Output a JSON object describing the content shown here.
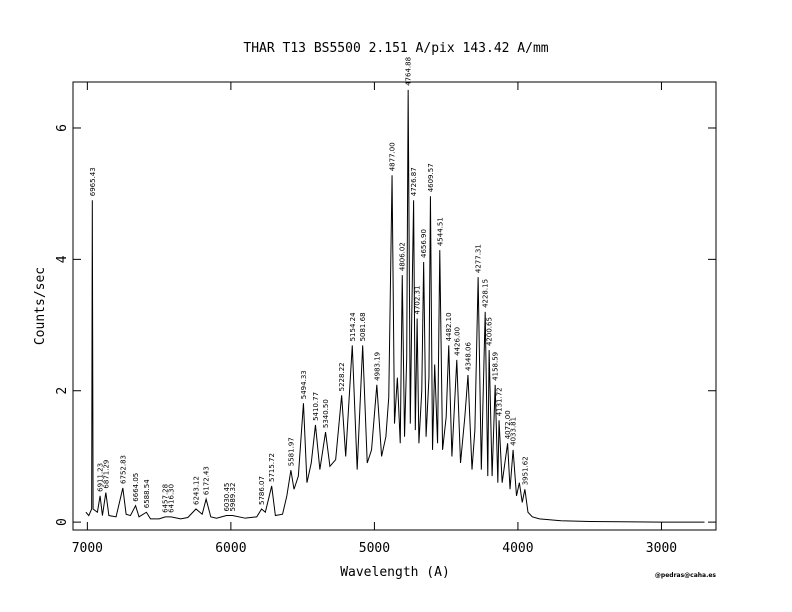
{
  "chart_data": {
    "type": "line",
    "title": "THAR  T13  BS5500  2.151 A/pix  143.42 A/mm",
    "xlabel": "Wavelength (A)",
    "ylabel": "Counts/sec",
    "footnote": "@pedras@caha.es",
    "xlim": [
      7100,
      2620
    ],
    "ylim": [
      -0.12,
      6.7
    ],
    "xticks": [
      7000,
      6000,
      5000,
      4000,
      3000
    ],
    "yticks": [
      0,
      2,
      4,
      6
    ],
    "color": "#000000",
    "x": [
      7010,
      6990,
      6970,
      6965.43,
      6960,
      6930,
      6911.23,
      6895,
      6871.29,
      6850,
      6800,
      6752.83,
      6730,
      6700,
      6664.05,
      6640,
      6588.54,
      6560,
      6500,
      6457.28,
      6416.3,
      6350,
      6300,
      6243.12,
      6200,
      6172.43,
      6140,
      6100,
      6030.45,
      5989.32,
      5900,
      5820,
      5786.07,
      5760,
      5715.72,
      5690,
      5640,
      5610,
      5581.97,
      5560,
      5530,
      5494.33,
      5470,
      5440,
      5410.77,
      5380,
      5340.5,
      5310,
      5270,
      5228.22,
      5200,
      5154.24,
      5120,
      5081.68,
      5050,
      5020,
      4983.19,
      4950,
      4920,
      4900,
      4877.0,
      4860,
      4840,
      4820,
      4806.02,
      4790,
      4775,
      4764.88,
      4750,
      4740,
      4726.87,
      4715,
      4702.31,
      4690,
      4670,
      4656.9,
      4640,
      4620,
      4609.57,
      4595,
      4580,
      4560,
      4544.51,
      4525,
      4500,
      4482.1,
      4460,
      4426.0,
      4400,
      4370,
      4348.06,
      4320,
      4300,
      4277.31,
      4255,
      4228.15,
      4210,
      4200.65,
      4180,
      4158.59,
      4140,
      4131.72,
      4110,
      4072.0,
      4055,
      4033.81,
      4010,
      3990,
      3970,
      3951.62,
      3930,
      3900,
      3850,
      3700,
      3500,
      3000,
      2700
    ],
    "values": [
      0.15,
      0.1,
      0.2,
      4.9,
      0.2,
      0.15,
      0.4,
      0.1,
      0.45,
      0.1,
      0.08,
      0.52,
      0.12,
      0.1,
      0.25,
      0.08,
      0.15,
      0.05,
      0.05,
      0.08,
      0.08,
      0.05,
      0.07,
      0.2,
      0.12,
      0.35,
      0.08,
      0.06,
      0.1,
      0.1,
      0.06,
      0.08,
      0.2,
      0.15,
      0.55,
      0.1,
      0.12,
      0.4,
      0.79,
      0.5,
      0.7,
      1.81,
      0.6,
      0.9,
      1.48,
      0.8,
      1.37,
      0.85,
      0.95,
      1.93,
      1.0,
      2.69,
      0.8,
      2.69,
      0.9,
      1.1,
      2.09,
      1.0,
      1.3,
      1.9,
      5.28,
      1.5,
      2.2,
      1.2,
      3.76,
      1.3,
      2.5,
      6.58,
      1.5,
      3.1,
      4.9,
      1.4,
      3.1,
      1.2,
      2.0,
      3.96,
      1.3,
      2.2,
      4.96,
      1.1,
      2.4,
      1.2,
      4.14,
      1.1,
      1.6,
      2.69,
      1.0,
      2.47,
      0.9,
      1.6,
      2.24,
      0.8,
      1.4,
      3.73,
      0.8,
      3.2,
      0.7,
      2.62,
      0.7,
      2.09,
      0.6,
      1.55,
      0.6,
      1.2,
      0.5,
      1.1,
      0.4,
      0.6,
      0.3,
      0.5,
      0.15,
      0.08,
      0.05,
      0.02,
      0.01,
      0.0,
      0.0
    ],
    "annotations": [
      {
        "label": "6965.43",
        "x": 6965.43,
        "y": 4.9
      },
      {
        "label": "6911.23",
        "x": 6911.23,
        "y": 0.4
      },
      {
        "label": "6871.29",
        "x": 6871.29,
        "y": 0.45
      },
      {
        "label": "6752.83",
        "x": 6752.83,
        "y": 0.52
      },
      {
        "label": "6664.05",
        "x": 6664.05,
        "y": 0.25
      },
      {
        "label": "6588.54",
        "x": 6588.54,
        "y": 0.15
      },
      {
        "label": "6457.28",
        "x": 6457.28,
        "y": 0.08
      },
      {
        "label": "6416.30",
        "x": 6416.3,
        "y": 0.08
      },
      {
        "label": "6243.12",
        "x": 6243.12,
        "y": 0.2
      },
      {
        "label": "6172.43",
        "x": 6172.43,
        "y": 0.35
      },
      {
        "label": "6030.45",
        "x": 6030.45,
        "y": 0.1
      },
      {
        "label": "5989.32",
        "x": 5989.32,
        "y": 0.1
      },
      {
        "label": "5786.07",
        "x": 5786.07,
        "y": 0.2
      },
      {
        "label": "5715.72",
        "x": 5715.72,
        "y": 0.55
      },
      {
        "label": "5581.97",
        "x": 5581.97,
        "y": 0.79
      },
      {
        "label": "5494.33",
        "x": 5494.33,
        "y": 1.81
      },
      {
        "label": "5410.77",
        "x": 5410.77,
        "y": 1.48
      },
      {
        "label": "5340.50",
        "x": 5340.5,
        "y": 1.37
      },
      {
        "label": "5228.22",
        "x": 5228.22,
        "y": 1.93
      },
      {
        "label": "5154.24",
        "x": 5154.24,
        "y": 2.69
      },
      {
        "label": "5081.68",
        "x": 5081.68,
        "y": 2.69
      },
      {
        "label": "4983.19",
        "x": 4983.19,
        "y": 2.09
      },
      {
        "label": "4877.00",
        "x": 4877.0,
        "y": 5.28
      },
      {
        "label": "4806.02",
        "x": 4806.02,
        "y": 3.76
      },
      {
        "label": "4764.88",
        "x": 4764.88,
        "y": 6.58
      },
      {
        "label": "4726.87",
        "x": 4726.87,
        "y": 4.9
      },
      {
        "label": "4702.31",
        "x": 4702.31,
        "y": 3.1
      },
      {
        "label": "4656.90",
        "x": 4656.9,
        "y": 3.96
      },
      {
        "label": "4609.57",
        "x": 4609.57,
        "y": 4.96
      },
      {
        "label": "4544.51",
        "x": 4544.51,
        "y": 4.14
      },
      {
        "label": "4482.10",
        "x": 4482.1,
        "y": 2.69
      },
      {
        "label": "4426.00",
        "x": 4426.0,
        "y": 2.47
      },
      {
        "label": "4348.06",
        "x": 4348.06,
        "y": 2.24
      },
      {
        "label": "4277.31",
        "x": 4277.31,
        "y": 3.73
      },
      {
        "label": "4228.15",
        "x": 4228.15,
        "y": 3.2
      },
      {
        "label": "4200.65",
        "x": 4200.65,
        "y": 2.62
      },
      {
        "label": "4158.59",
        "x": 4158.59,
        "y": 2.09
      },
      {
        "label": "4131.72",
        "x": 4131.72,
        "y": 1.55
      },
      {
        "label": "4072.00",
        "x": 4072.0,
        "y": 1.2
      },
      {
        "label": "4033.81",
        "x": 4033.81,
        "y": 1.1
      },
      {
        "label": "3951.62",
        "x": 3951.62,
        "y": 0.5
      }
    ]
  }
}
